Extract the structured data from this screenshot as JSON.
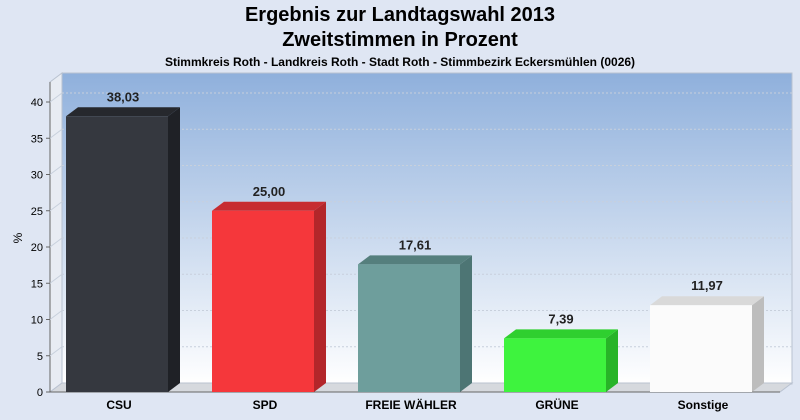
{
  "header": {
    "title": "Ergebnis zur Landtagswahl 2013",
    "subtitle": "Zweitstimmen in Prozent",
    "caption": "Stimmkreis Roth - Landkreis Roth - Stadt Roth - Stimmbezirk Eckersmühlen (0026)"
  },
  "chart_data": {
    "type": "bar",
    "title": "Ergebnis zur Landtagswahl 2013",
    "subtitle": "Zweitstimmen in Prozent",
    "ylabel": "%",
    "xlabel": "",
    "ylim": [
      0,
      40
    ],
    "yticks": [
      0,
      5,
      10,
      15,
      20,
      25,
      30,
      35,
      40
    ],
    "grid": true,
    "categories": [
      "CSU",
      "SPD",
      "FREIE WÄHLER",
      "GRÜNE",
      "Sonstige"
    ],
    "values": [
      38.03,
      25.0,
      17.61,
      7.39,
      11.97
    ],
    "value_labels": [
      "38,03",
      "25,00",
      "17,61",
      "7,39",
      "11,97"
    ],
    "colors": [
      "#35383f",
      "#f5373b",
      "#6e9e9c",
      "#3ef33e",
      "#fbfbfb"
    ],
    "side_colors": [
      "#1f2126",
      "#b3262a",
      "#4d7574",
      "#28b428",
      "#bdbdbd"
    ],
    "top_colors": [
      "#26282d",
      "#c72c30",
      "#557f7d",
      "#2fcf2f",
      "#d9d9d9"
    ]
  }
}
